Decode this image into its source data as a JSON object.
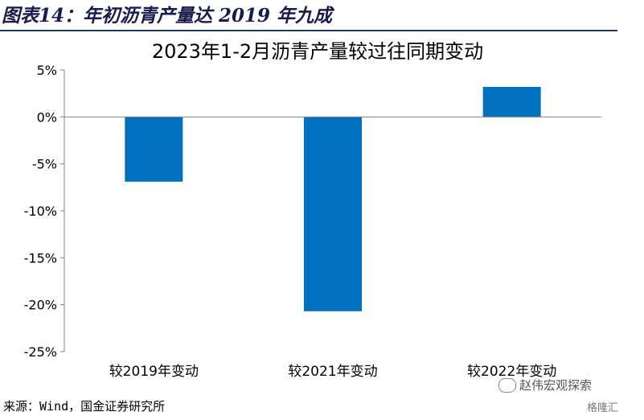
{
  "figure": {
    "title": "图表14：年初沥青产量达 2019 年九成",
    "source": "来源：Wind，国金证券研究所",
    "watermark": "赵伟宏观探索",
    "watermark_sub": "格隆汇"
  },
  "chart_data": {
    "type": "bar",
    "title": "2023年1-2月沥青产量较过往同期变动",
    "categories": [
      "较2019年变动",
      "较2021年变动",
      "较2022年变动"
    ],
    "values": [
      -6.9,
      -20.7,
      3.2
    ],
    "ylim": [
      -25,
      5
    ],
    "yticks": [
      "5%",
      "0%",
      "-5%",
      "-10%",
      "-15%",
      "-20%",
      "-25%"
    ],
    "ytick_values": [
      5,
      0,
      -5,
      -10,
      -15,
      -20,
      -25
    ],
    "bar_color": "#0070C0",
    "grid": false,
    "legend": "none"
  }
}
